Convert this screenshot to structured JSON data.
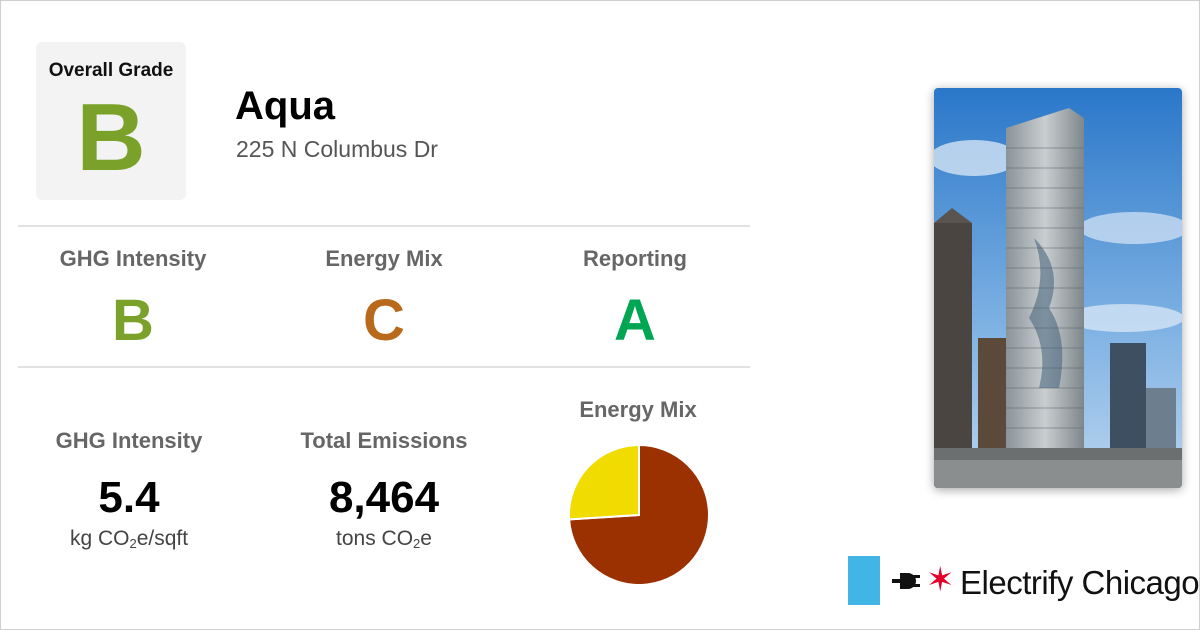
{
  "building": {
    "overall_label": "Overall Grade",
    "overall_grade": "B",
    "name": "Aqua",
    "address": "225 N Columbus Dr"
  },
  "grades": [
    {
      "label": "GHG Intensity",
      "grade": "B",
      "color": "#7aa22a"
    },
    {
      "label": "Energy Mix",
      "grade": "C",
      "color": "#b8691a"
    },
    {
      "label": "Reporting",
      "grade": "A",
      "color": "#00a651"
    }
  ],
  "stats": {
    "ghg_intensity": {
      "label": "GHG Intensity",
      "value": "5.4",
      "unit_pre": "kg CO",
      "unit_sub": "2",
      "unit_post": "e/sqft"
    },
    "total_emissions": {
      "label": "Total Emissions",
      "value": "8,464",
      "unit_pre": "tons CO",
      "unit_sub": "2",
      "unit_post": "e"
    }
  },
  "chart_data": {
    "type": "pie",
    "title": "Energy Mix",
    "slices": [
      {
        "value": 74,
        "color": "#9b3100"
      },
      {
        "value": 26,
        "color": "#f0dc00"
      }
    ]
  },
  "logo": {
    "text": "Electrify Chicago",
    "star": "✶",
    "bar_color": "#41b6e6",
    "star_color": "#e4002b"
  },
  "photo": {
    "icon": "building-photo"
  }
}
